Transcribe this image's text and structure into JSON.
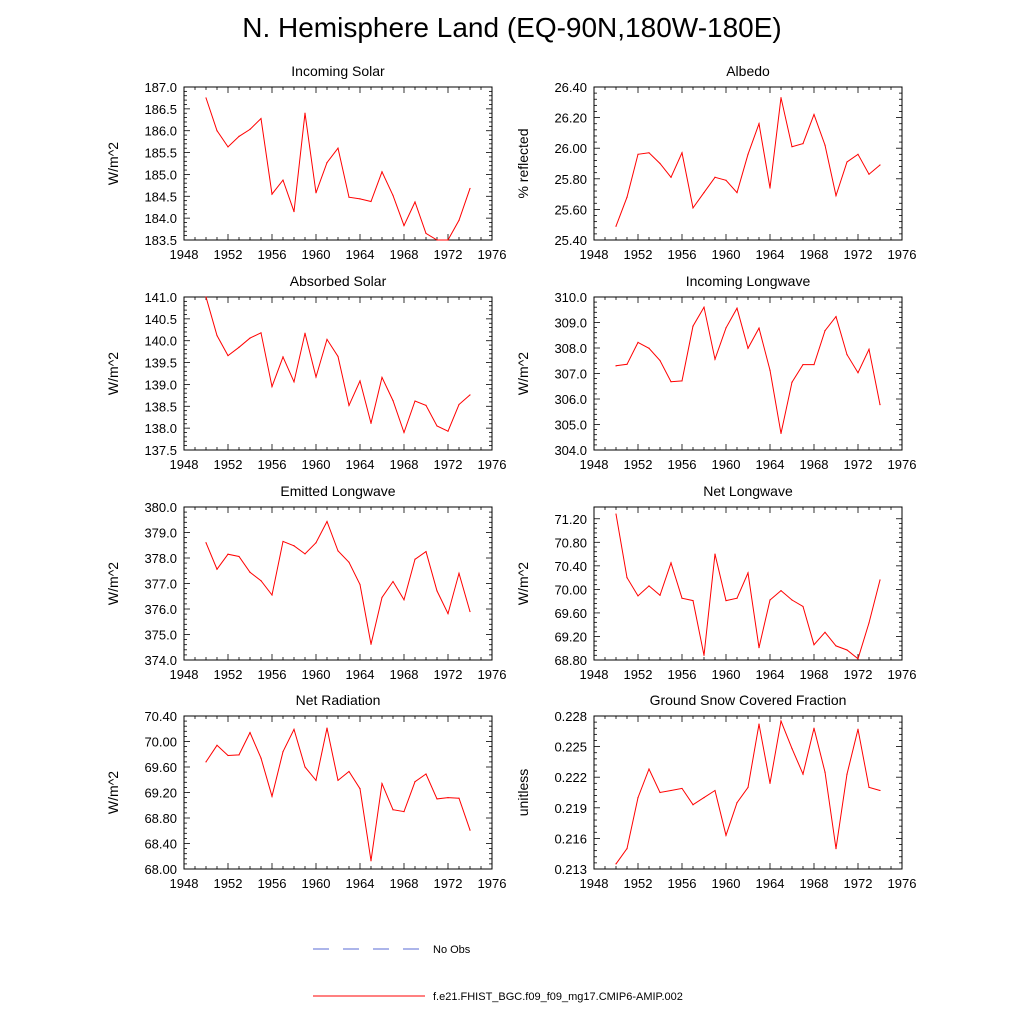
{
  "title": "N. Hemisphere Land (EQ-90N,180W-180E)",
  "colors": {
    "model": "#ff0000",
    "obs": "#5a6bd6",
    "axis": "#000000"
  },
  "legend": {
    "obs_label": "No Obs",
    "model_label": "f.e21.FHIST_BGC.f09_f09_mg17.CMIP6-AMIP.002"
  },
  "chart_data": [
    {
      "type": "line",
      "title": "Incoming Solar",
      "ylabel": "W/m^2",
      "xlabel": "",
      "xlim": [
        1948,
        1976
      ],
      "ylim": [
        183.5,
        187.0
      ],
      "xticks": [
        1948,
        1952,
        1956,
        1960,
        1964,
        1968,
        1972,
        1976
      ],
      "xtick_labels": [
        "1948",
        "1952",
        "1956",
        "1960",
        "1964",
        "1968",
        "1972",
        "1976"
      ],
      "yticks": [
        183.5,
        184.0,
        184.5,
        185.0,
        185.5,
        186.0,
        186.5,
        187.0
      ],
      "ytick_labels": [
        "183.5",
        "184.0",
        "184.5",
        "185.0",
        "185.5",
        "186.0",
        "186.5",
        "187.0"
      ],
      "series": [
        {
          "name": "f.e21.FHIST_BGC.f09_f09_mg17.CMIP6-AMIP.002",
          "x": [
            1950,
            1951,
            1952,
            1953,
            1954,
            1955,
            1956,
            1957,
            1958,
            1959,
            1960,
            1961,
            1962,
            1963,
            1964,
            1965,
            1966,
            1967,
            1968,
            1969,
            1970,
            1971,
            1972,
            1973,
            1974
          ],
          "y": [
            186.75,
            186.0,
            185.63,
            185.87,
            186.03,
            186.28,
            184.55,
            184.87,
            184.15,
            186.4,
            184.58,
            185.27,
            185.6,
            184.48,
            184.44,
            184.38,
            185.06,
            184.52,
            183.83,
            184.37,
            183.65,
            183.5,
            183.5,
            183.95,
            184.68
          ]
        }
      ]
    },
    {
      "type": "line",
      "title": "Albedo",
      "ylabel": "% reflected",
      "xlabel": "",
      "xlim": [
        1948,
        1976
      ],
      "ylim": [
        25.4,
        26.4
      ],
      "xticks": [
        1948,
        1952,
        1956,
        1960,
        1964,
        1968,
        1972,
        1976
      ],
      "xtick_labels": [
        "1948",
        "1952",
        "1956",
        "1960",
        "1964",
        "1968",
        "1972",
        "1976"
      ],
      "yticks": [
        25.4,
        25.6,
        25.8,
        26.0,
        26.2,
        26.4
      ],
      "ytick_labels": [
        "25.40",
        "25.60",
        "25.80",
        "26.00",
        "26.20",
        "26.40"
      ],
      "series": [
        {
          "name": "f.e21.FHIST_BGC.f09_f09_mg17.CMIP6-AMIP.002",
          "x": [
            1950,
            1951,
            1952,
            1953,
            1954,
            1955,
            1956,
            1957,
            1958,
            1959,
            1960,
            1961,
            1962,
            1963,
            1964,
            1965,
            1966,
            1967,
            1968,
            1969,
            1970,
            1971,
            1972,
            1973,
            1974
          ],
          "y": [
            25.49,
            25.68,
            25.96,
            25.97,
            25.9,
            25.81,
            25.97,
            25.61,
            25.71,
            25.81,
            25.79,
            25.71,
            25.96,
            26.16,
            25.74,
            26.33,
            26.01,
            26.03,
            26.22,
            26.02,
            25.69,
            25.91,
            25.96,
            25.83,
            25.89
          ]
        }
      ]
    },
    {
      "type": "line",
      "title": "Absorbed Solar",
      "ylabel": "W/m^2",
      "xlabel": "",
      "xlim": [
        1948,
        1976
      ],
      "ylim": [
        137.5,
        141.0
      ],
      "xticks": [
        1948,
        1952,
        1956,
        1960,
        1964,
        1968,
        1972,
        1976
      ],
      "xtick_labels": [
        "1948",
        "1952",
        "1956",
        "1960",
        "1964",
        "1968",
        "1972",
        "1976"
      ],
      "yticks": [
        137.5,
        138.0,
        138.5,
        139.0,
        139.5,
        140.0,
        140.5,
        141.0
      ],
      "ytick_labels": [
        "137.5",
        "138.0",
        "138.5",
        "139.0",
        "139.5",
        "140.0",
        "140.5",
        "141.0"
      ],
      "series": [
        {
          "name": "f.e21.FHIST_BGC.f09_f09_mg17.CMIP6-AMIP.002",
          "x": [
            1950,
            1951,
            1952,
            1953,
            1954,
            1955,
            1956,
            1957,
            1958,
            1959,
            1960,
            1961,
            1962,
            1963,
            1964,
            1965,
            1966,
            1967,
            1968,
            1969,
            1970,
            1971,
            1972,
            1973,
            1974
          ],
          "y": [
            141.0,
            140.12,
            139.66,
            139.85,
            140.06,
            140.18,
            138.95,
            139.63,
            139.06,
            140.17,
            139.17,
            140.03,
            139.64,
            138.52,
            139.08,
            138.11,
            139.16,
            138.63,
            137.9,
            138.62,
            138.52,
            138.05,
            137.93,
            138.54,
            138.76
          ]
        }
      ]
    },
    {
      "type": "line",
      "title": "Incoming Longwave",
      "ylabel": "W/m^2",
      "xlabel": "",
      "xlim": [
        1948,
        1976
      ],
      "ylim": [
        304.0,
        310.0
      ],
      "xticks": [
        1948,
        1952,
        1956,
        1960,
        1964,
        1968,
        1972,
        1976
      ],
      "xtick_labels": [
        "1948",
        "1952",
        "1956",
        "1960",
        "1964",
        "1968",
        "1972",
        "1976"
      ],
      "yticks": [
        304.0,
        305.0,
        306.0,
        307.0,
        308.0,
        309.0,
        310.0
      ],
      "ytick_labels": [
        "304.0",
        "305.0",
        "306.0",
        "307.0",
        "308.0",
        "309.0",
        "310.0"
      ],
      "series": [
        {
          "name": "f.e21.FHIST_BGC.f09_f09_mg17.CMIP6-AMIP.002",
          "x": [
            1950,
            1951,
            1952,
            1953,
            1954,
            1955,
            1956,
            1957,
            1958,
            1959,
            1960,
            1961,
            1962,
            1963,
            1964,
            1965,
            1966,
            1967,
            1968,
            1969,
            1970,
            1971,
            1972,
            1973,
            1974
          ],
          "y": [
            307.3,
            307.36,
            308.22,
            307.99,
            307.51,
            306.68,
            306.71,
            308.86,
            309.6,
            307.56,
            308.79,
            309.56,
            307.99,
            308.78,
            307.13,
            304.65,
            306.66,
            307.35,
            307.35,
            308.68,
            309.23,
            307.74,
            307.03,
            307.95,
            305.78
          ]
        }
      ]
    },
    {
      "type": "line",
      "title": "Emitted Longwave",
      "ylabel": "W/m^2",
      "xlabel": "",
      "xlim": [
        1948,
        1976
      ],
      "ylim": [
        374.0,
        380.0
      ],
      "xticks": [
        1948,
        1952,
        1956,
        1960,
        1964,
        1968,
        1972,
        1976
      ],
      "xtick_labels": [
        "1948",
        "1952",
        "1956",
        "1960",
        "1964",
        "1968",
        "1972",
        "1976"
      ],
      "yticks": [
        374.0,
        375.0,
        376.0,
        377.0,
        378.0,
        379.0,
        380.0
      ],
      "ytick_labels": [
        "374.0",
        "375.0",
        "376.0",
        "377.0",
        "378.0",
        "379.0",
        "380.0"
      ],
      "series": [
        {
          "name": "f.e21.FHIST_BGC.f09_f09_mg17.CMIP6-AMIP.002",
          "x": [
            1950,
            1951,
            1952,
            1953,
            1954,
            1955,
            1956,
            1957,
            1958,
            1959,
            1960,
            1961,
            1962,
            1963,
            1964,
            1965,
            1966,
            1967,
            1968,
            1969,
            1970,
            1971,
            1972,
            1973,
            1974
          ],
          "y": [
            378.6,
            377.56,
            378.15,
            378.06,
            377.44,
            377.11,
            376.55,
            378.65,
            378.48,
            378.16,
            378.6,
            379.43,
            378.28,
            377.83,
            376.96,
            374.62,
            376.45,
            377.08,
            376.36,
            377.95,
            378.25,
            376.71,
            375.82,
            377.4,
            375.9
          ]
        }
      ]
    },
    {
      "type": "line",
      "title": "Net Longwave",
      "ylabel": "W/m^2",
      "xlabel": "",
      "xlim": [
        1948,
        1976
      ],
      "ylim": [
        68.8,
        71.4
      ],
      "xticks": [
        1948,
        1952,
        1956,
        1960,
        1964,
        1968,
        1972,
        1976
      ],
      "xtick_labels": [
        "1948",
        "1952",
        "1956",
        "1960",
        "1964",
        "1968",
        "1972",
        "1976"
      ],
      "yticks": [
        68.8,
        69.2,
        69.6,
        70.0,
        70.4,
        70.8,
        71.2
      ],
      "ytick_labels": [
        "68.80",
        "69.20",
        "69.60",
        "70.00",
        "70.40",
        "70.80",
        "71.20"
      ],
      "series": [
        {
          "name": "f.e21.FHIST_BGC.f09_f09_mg17.CMIP6-AMIP.002",
          "x": [
            1950,
            1951,
            1952,
            1953,
            1954,
            1955,
            1956,
            1957,
            1958,
            1959,
            1960,
            1961,
            1962,
            1963,
            1964,
            1965,
            1966,
            1967,
            1968,
            1969,
            1970,
            1971,
            1972,
            1973,
            1974
          ],
          "y": [
            71.28,
            70.2,
            69.89,
            70.06,
            69.9,
            70.45,
            69.85,
            69.81,
            68.88,
            70.6,
            69.81,
            69.85,
            70.28,
            69.01,
            69.82,
            69.98,
            69.82,
            69.71,
            69.06,
            69.27,
            69.04,
            68.97,
            68.82,
            69.43,
            70.16
          ]
        }
      ]
    },
    {
      "type": "line",
      "title": "Net Radiation",
      "ylabel": "W/m^2",
      "xlabel": "",
      "xlim": [
        1948,
        1976
      ],
      "ylim": [
        68.0,
        70.4
      ],
      "xticks": [
        1948,
        1952,
        1956,
        1960,
        1964,
        1968,
        1972,
        1976
      ],
      "xtick_labels": [
        "1948",
        "1952",
        "1956",
        "1960",
        "1964",
        "1968",
        "1972",
        "1976"
      ],
      "yticks": [
        68.0,
        68.4,
        68.8,
        69.2,
        69.6,
        70.0,
        70.4
      ],
      "ytick_labels": [
        "68.00",
        "68.40",
        "68.80",
        "69.20",
        "69.60",
        "70.00",
        "70.40"
      ],
      "series": [
        {
          "name": "f.e21.FHIST_BGC.f09_f09_mg17.CMIP6-AMIP.002",
          "x": [
            1950,
            1951,
            1952,
            1953,
            1954,
            1955,
            1956,
            1957,
            1958,
            1959,
            1960,
            1961,
            1962,
            1963,
            1964,
            1965,
            1966,
            1967,
            1968,
            1969,
            1970,
            1971,
            1972,
            1973,
            1974
          ],
          "y": [
            69.68,
            69.94,
            69.78,
            69.79,
            70.14,
            69.74,
            69.14,
            69.84,
            70.19,
            69.6,
            69.39,
            70.21,
            69.39,
            69.53,
            69.26,
            68.13,
            69.34,
            68.93,
            68.9,
            69.37,
            69.49,
            69.1,
            69.12,
            69.11,
            68.61
          ]
        }
      ]
    },
    {
      "type": "line",
      "title": "Ground Snow Covered Fraction",
      "ylabel": "unitless",
      "xlabel": "",
      "xlim": [
        1948,
        1976
      ],
      "ylim": [
        0.213,
        0.228
      ],
      "xticks": [
        1948,
        1952,
        1956,
        1960,
        1964,
        1968,
        1972,
        1976
      ],
      "xtick_labels": [
        "1948",
        "1952",
        "1956",
        "1960",
        "1964",
        "1968",
        "1972",
        "1976"
      ],
      "yticks": [
        0.213,
        0.216,
        0.219,
        0.222,
        0.225,
        0.228
      ],
      "ytick_labels": [
        "0.213",
        "0.216",
        "0.219",
        "0.222",
        "0.225",
        "0.228"
      ],
      "series": [
        {
          "name": "f.e21.FHIST_BGC.f09_f09_mg17.CMIP6-AMIP.002",
          "x": [
            1950,
            1951,
            1952,
            1953,
            1954,
            1955,
            1956,
            1957,
            1958,
            1959,
            1960,
            1961,
            1962,
            1963,
            1964,
            1965,
            1966,
            1967,
            1968,
            1969,
            1970,
            1971,
            1972,
            1973,
            1974
          ],
          "y": [
            0.2135,
            0.215,
            0.22,
            0.2228,
            0.2205,
            0.2207,
            0.2209,
            0.2193,
            0.22,
            0.2207,
            0.2163,
            0.2195,
            0.221,
            0.2272,
            0.2214,
            0.2275,
            0.2248,
            0.2223,
            0.2268,
            0.2225,
            0.215,
            0.2223,
            0.2267,
            0.221,
            0.2207
          ]
        }
      ]
    }
  ]
}
